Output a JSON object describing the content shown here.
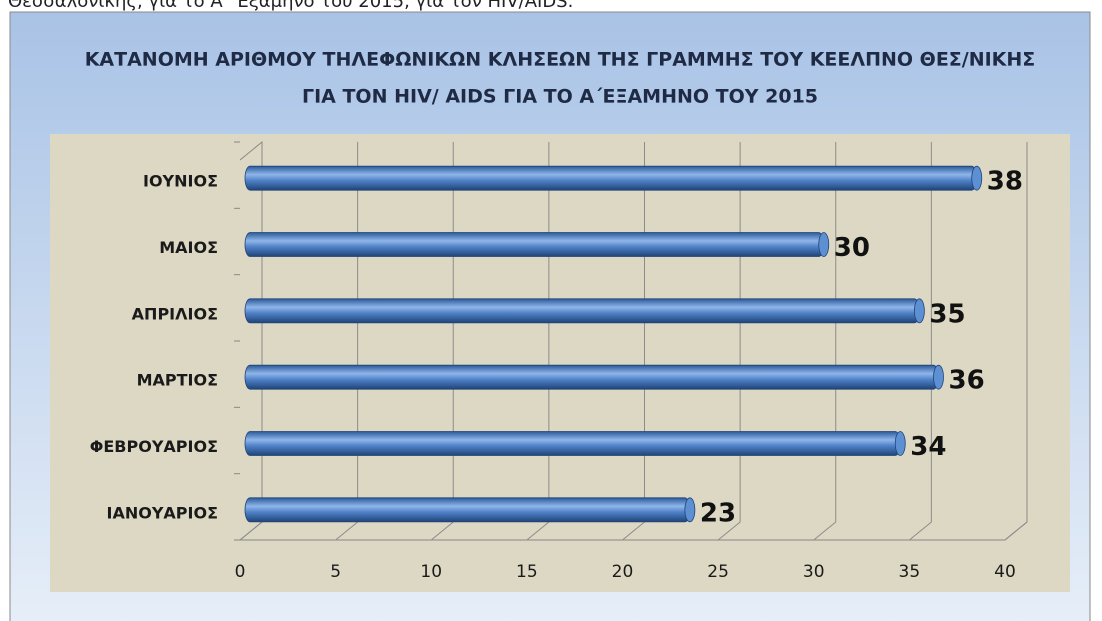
{
  "caption": "Θεσσαλονίκης, για το Α΄ Εξάμηνο του 2015, για τον HIV/AIDS.",
  "chart_data": {
    "type": "bar",
    "orientation": "horizontal",
    "title": [
      "ΚΑΤΑΝΟΜΗ ΑΡΙΘΜΟΥ ΤΗΛΕΦΩΝΙΚΩΝ ΚΛΗΣΕΩΝ ΤΗΣ ΓΡΑΜΜΗΣ ΤΟΥ ΚΕΕΛΠΝΟ ΘΕΣ/ΝΙΚΗΣ",
      "ΓΙΑ ΤΟΝ HIV/ AIDS ΓΙΑ ΤΟ Α΄ΕΞΑΜΗΝΟ ΤΟΥ 2015"
    ],
    "categories": [
      "ΙΑΝΟΥΑΡΙΟΣ",
      "ΦΕΒΡΟΥΑΡΙΟΣ",
      "ΜΑΡΤΙΟΣ",
      "ΑΠΡΙΛΙΟΣ",
      "ΜΑΙΟΣ",
      "ΙΟΥΝΙΟΣ"
    ],
    "values": [
      23,
      34,
      36,
      35,
      30,
      38
    ],
    "color": "#4f81bd",
    "xlim": [
      0,
      40
    ],
    "xticks": [
      0,
      5,
      10,
      15,
      20,
      25,
      30,
      35,
      40
    ],
    "grid": true
  }
}
